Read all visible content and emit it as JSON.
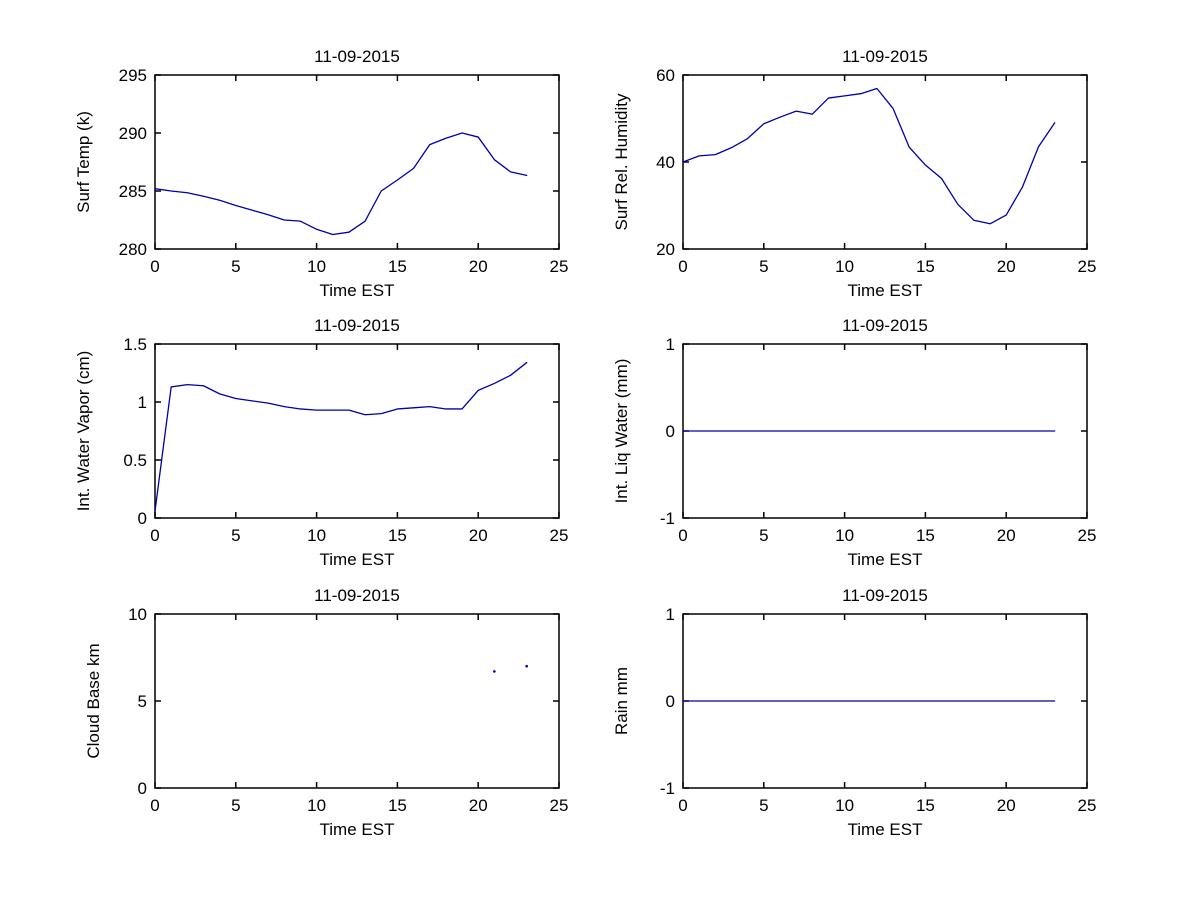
{
  "figure": {
    "background": "#ffffff",
    "axis_color": "#000000",
    "text_color": "#000000",
    "line_color": "#0000A8"
  },
  "chart_data": [
    {
      "id": "surf-temp",
      "type": "line",
      "title": "11-09-2015",
      "xlabel": "Time EST",
      "ylabel": "Surf Temp (k)",
      "xlim": [
        0,
        25
      ],
      "ylim": [
        280,
        295
      ],
      "xticks": [
        0,
        5,
        10,
        15,
        20,
        25
      ],
      "yticks": [
        280,
        285,
        290,
        295
      ],
      "line_color": "#0000A8",
      "x": [
        0,
        1,
        2,
        3,
        4,
        5,
        6,
        7,
        8,
        9,
        10,
        11,
        12,
        13,
        14,
        15,
        16,
        17,
        18,
        19,
        20,
        21,
        22,
        23
      ],
      "y": [
        285.2,
        285.0,
        284.85,
        284.55,
        284.2,
        283.75,
        283.35,
        282.95,
        282.5,
        282.4,
        281.7,
        281.25,
        281.45,
        282.4,
        285.0,
        285.95,
        286.95,
        289.0,
        289.55,
        290.0,
        289.65,
        287.7,
        286.65,
        286.35
      ]
    },
    {
      "id": "surf-rel-humidity",
      "type": "line",
      "title": "11-09-2015",
      "xlabel": "Time EST",
      "ylabel": "Surf Rel. Humidity",
      "xlim": [
        0,
        25
      ],
      "ylim": [
        20,
        60
      ],
      "xticks": [
        0,
        5,
        10,
        15,
        20,
        25
      ],
      "yticks": [
        20,
        40,
        60
      ],
      "line_color": "#0000A8",
      "x": [
        0,
        1,
        2,
        3,
        4,
        5,
        6,
        7,
        8,
        9,
        10,
        11,
        12,
        13,
        14,
        15,
        16,
        17,
        18,
        19,
        20,
        21,
        22,
        23
      ],
      "y": [
        40.0,
        41.4,
        41.7,
        43.3,
        45.4,
        48.8,
        50.3,
        51.7,
        51.0,
        54.7,
        55.2,
        55.7,
        56.9,
        52.3,
        43.4,
        39.3,
        36.2,
        30.3,
        26.6,
        25.8,
        27.8,
        34.2,
        43.5,
        49.0
      ]
    },
    {
      "id": "int-water-vapor",
      "type": "line",
      "title": "11-09-2015",
      "xlabel": "Time EST",
      "ylabel": "Int. Water Vapor (cm)",
      "xlim": [
        0,
        25
      ],
      "ylim": [
        0,
        1.5
      ],
      "xticks": [
        0,
        5,
        10,
        15,
        20,
        25
      ],
      "yticks": [
        0,
        0.5,
        1,
        1.5
      ],
      "line_color": "#0000A8",
      "x": [
        0,
        1,
        2,
        3,
        4,
        5,
        6,
        7,
        8,
        9,
        10,
        11,
        12,
        13,
        14,
        15,
        16,
        17,
        18,
        19,
        20,
        21,
        22,
        23
      ],
      "y": [
        0.06,
        1.13,
        1.15,
        1.14,
        1.07,
        1.03,
        1.01,
        0.99,
        0.96,
        0.94,
        0.93,
        0.93,
        0.93,
        0.89,
        0.9,
        0.94,
        0.95,
        0.96,
        0.94,
        0.94,
        1.1,
        1.16,
        1.23,
        1.34
      ]
    },
    {
      "id": "int-liq-water",
      "type": "line",
      "title": "11-09-2015",
      "xlabel": "Time EST",
      "ylabel": "Int. Liq Water (mm)",
      "xlim": [
        0,
        25
      ],
      "ylim": [
        -1,
        1
      ],
      "xticks": [
        0,
        5,
        10,
        15,
        20,
        25
      ],
      "yticks": [
        -1,
        0,
        1
      ],
      "line_color": "#0000A8",
      "x": [
        0,
        1,
        2,
        3,
        4,
        5,
        6,
        7,
        8,
        9,
        10,
        11,
        12,
        13,
        14,
        15,
        16,
        17,
        18,
        19,
        20,
        21,
        22,
        23
      ],
      "y": [
        0,
        0,
        0,
        0,
        0,
        0,
        0,
        0,
        0,
        0,
        0,
        0,
        0,
        0,
        0,
        0,
        0,
        0,
        0,
        0,
        0,
        0,
        0,
        0
      ]
    },
    {
      "id": "cloud-base",
      "type": "scatter",
      "title": "11-09-2015",
      "xlabel": "Time EST",
      "ylabel": "Cloud Base km",
      "xlim": [
        0,
        25
      ],
      "ylim": [
        0,
        10
      ],
      "xticks": [
        0,
        5,
        10,
        15,
        20,
        25
      ],
      "yticks": [
        0,
        5,
        10
      ],
      "line_color": "#0000A8",
      "points": [
        [
          21,
          6.7
        ],
        [
          23,
          7.0
        ]
      ]
    },
    {
      "id": "rain",
      "type": "line",
      "title": "11-09-2015",
      "xlabel": "Time EST",
      "ylabel": "Rain mm",
      "xlim": [
        0,
        25
      ],
      "ylim": [
        -1,
        1
      ],
      "xticks": [
        0,
        5,
        10,
        15,
        20,
        25
      ],
      "yticks": [
        -1,
        0,
        1
      ],
      "line_color": "#0000A8",
      "x": [
        0,
        1,
        2,
        3,
        4,
        5,
        6,
        7,
        8,
        9,
        10,
        11,
        12,
        13,
        14,
        15,
        16,
        17,
        18,
        19,
        20,
        21,
        22,
        23
      ],
      "y": [
        0,
        0,
        0,
        0,
        0,
        0,
        0,
        0,
        0,
        0,
        0,
        0,
        0,
        0,
        0,
        0,
        0,
        0,
        0,
        0,
        0,
        0,
        0,
        0
      ]
    }
  ]
}
